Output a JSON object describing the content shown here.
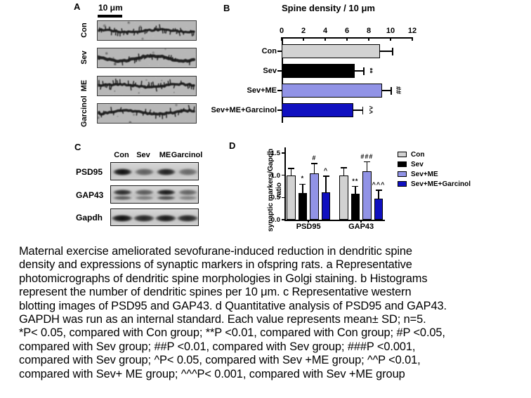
{
  "panels": {
    "a": "A",
    "b": "B",
    "c": "C",
    "d": "D"
  },
  "panel_a": {
    "label": "A",
    "scale_bar": "10 μm",
    "rows": [
      "Con",
      "Sev",
      "ME",
      "Garcinol"
    ]
  },
  "chart_data": [
    {
      "panel": "B",
      "type": "bar",
      "orientation": "horizontal",
      "title": "Spine density / 10 μm",
      "categories": [
        "Con",
        "Sev",
        "Sev+ME",
        "Sev+ME+Garcinol"
      ],
      "values": [
        9.0,
        6.7,
        9.2,
        6.6
      ],
      "errors": [
        1.2,
        0.85,
        0.85,
        0.85
      ],
      "annotations": [
        "",
        "**",
        "##",
        "^^"
      ],
      "bar_colors": [
        "#d2d2d2",
        "#000000",
        "#9193e6",
        "#1010c0"
      ],
      "xlim": [
        0,
        12
      ],
      "xticks": [
        0,
        2,
        4,
        6,
        8,
        10,
        12
      ],
      "grid": false
    },
    {
      "panel": "D",
      "type": "bar",
      "orientation": "vertical",
      "ylabel": "synaptic markers/Gapdh ratio",
      "categories": [
        "PSD95",
        "GAP43"
      ],
      "series": [
        {
          "name": "Con",
          "color": "#d2d2d2",
          "values": [
            1.0,
            1.0
          ],
          "errors": [
            0.15,
            0.17
          ],
          "annotations": [
            "",
            ""
          ]
        },
        {
          "name": "Sev",
          "color": "#000000",
          "values": [
            0.6,
            0.58
          ],
          "errors": [
            0.2,
            0.17
          ],
          "annotations": [
            "*",
            "**"
          ]
        },
        {
          "name": "Sev+ME",
          "color": "#9193e6",
          "values": [
            1.04,
            1.09
          ],
          "errors": [
            0.22,
            0.21
          ],
          "annotations": [
            "#",
            "###"
          ]
        },
        {
          "name": "Sev+ME+Garcinol",
          "color": "#1010c0",
          "values": [
            0.62,
            0.48
          ],
          "errors": [
            0.36,
            0.18
          ],
          "annotations": [
            "^",
            "^^^"
          ]
        }
      ],
      "ylim": [
        0,
        1.5
      ],
      "yticks": [
        "0.0",
        "0.5",
        "1.0",
        "1.5"
      ],
      "legend_position": "right",
      "grid": false
    }
  ],
  "panel_c": {
    "label": "C",
    "lanes": [
      "Con",
      "Sev",
      "ME",
      "Garcinol"
    ],
    "blots": [
      {
        "label": "PSD95",
        "bands": [
          1.0,
          0.55,
          0.9,
          0.5
        ],
        "band_h": 10,
        "band_w": 27,
        "double": false
      },
      {
        "label": "GAP43",
        "bands": [
          0.85,
          0.6,
          0.95,
          0.55
        ],
        "band_h": 8,
        "band_w": 27,
        "double": true
      },
      {
        "label": "Gapdh",
        "bands": [
          1.0,
          0.88,
          0.95,
          0.88
        ],
        "band_h": 10,
        "band_w": 30,
        "double": false
      }
    ]
  },
  "caption": {
    "lines": [
      "Maternal exercise ameliorated sevofurane-induced reduction in dendritic spine",
      "density and expressions of synaptic markers in ofspring rats. a Representative",
      "photomicrographs of dendritic spine morphologies in Golgi staining. b Histograms",
      "represent the number of dendritic spines per 10 μm. c Representative western",
      "blotting images of PSD95 and GAP43. d Quantitative analysis of PSD95 and GAP43.",
      "GAPDH was run as an internal standard. Each value represents mean± SD; n=5.",
      "*P< 0.05, compared with Con group; **P <0.01, compared with Con group; #P <0.05,",
      "compared with Sev group; ##P <0.01, compared with Sev group; ###P <0.001,",
      "compared with Sev group; ^P< 0.05, compared with Sev +ME group; ^^P <0.01,",
      "compared with Sev+ ME group; ^^^P< 0.001, compared with Sev +ME group"
    ]
  }
}
